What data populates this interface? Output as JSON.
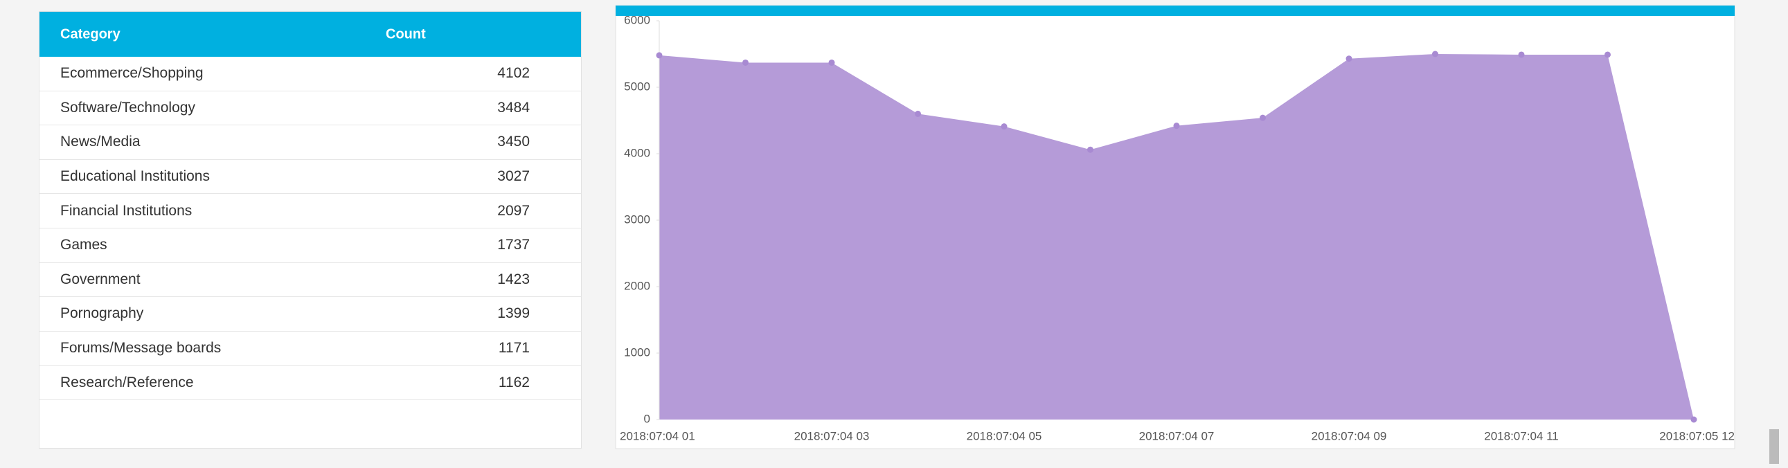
{
  "table": {
    "columns": [
      "Category",
      "Count"
    ],
    "rows": [
      [
        "Ecommerce/Shopping",
        "4102"
      ],
      [
        "Software/Technology",
        "3484"
      ],
      [
        "News/Media",
        "3450"
      ],
      [
        "Educational Institutions",
        "3027"
      ],
      [
        "Financial Institutions",
        "2097"
      ],
      [
        "Games",
        "1737"
      ],
      [
        "Government",
        "1423"
      ],
      [
        "Pornography",
        "1399"
      ],
      [
        "Forums/Message boards",
        "1171"
      ],
      [
        "Research/Reference",
        "1162"
      ]
    ]
  },
  "chart_data": {
    "type": "area",
    "categories": [
      "2018:07:04 01",
      null,
      "2018:07:04 03",
      null,
      "2018:07:04 05",
      null,
      "2018:07:04 07",
      null,
      "2018:07:04 09",
      null,
      "2018:07:04 11",
      null,
      "2018:07:05 12"
    ],
    "values": [
      5480,
      5370,
      5370,
      4600,
      4410,
      4060,
      4420,
      4540,
      5430,
      5500,
      5490,
      5490,
      0
    ],
    "color": "#b59bd8",
    "ylim": [
      0,
      6000
    ],
    "yticks": [
      0,
      1000,
      2000,
      3000,
      4000,
      5000,
      6000
    ]
  }
}
